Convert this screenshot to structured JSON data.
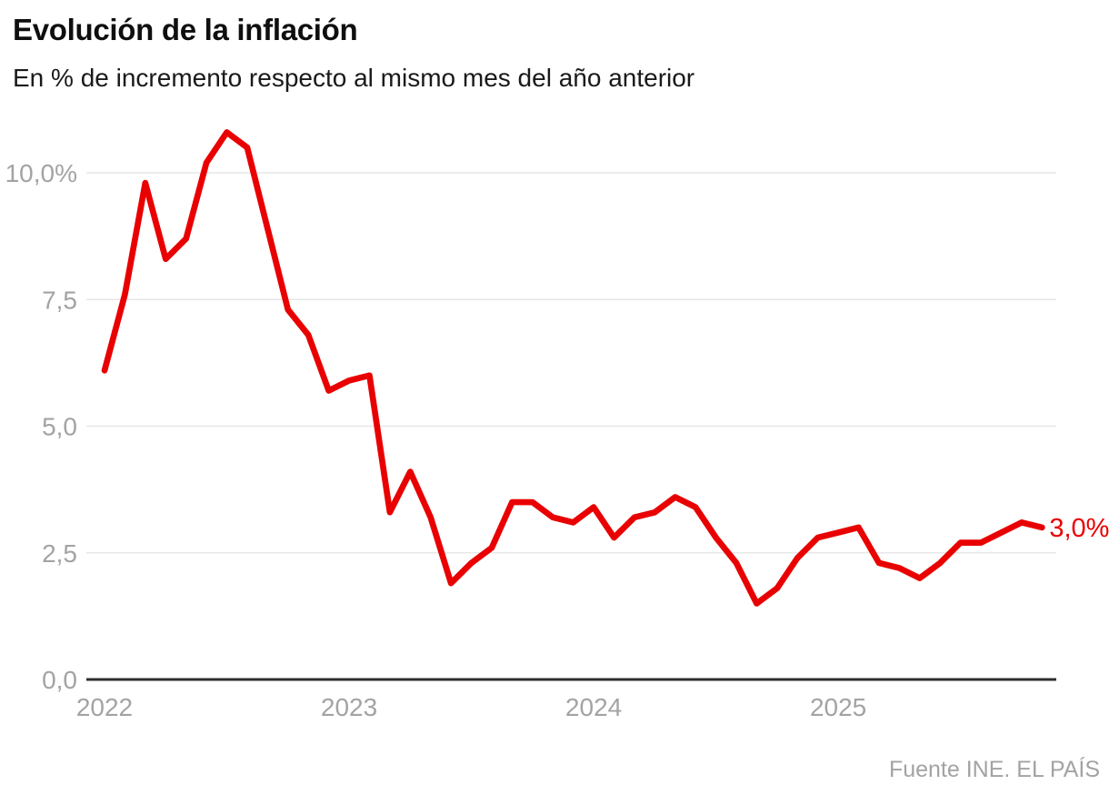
{
  "header": {
    "title": "Evolución de la inflación",
    "subtitle": "En % de incremento respecto al mismo mes del año anterior"
  },
  "footer": {
    "source": "Fuente INE. EL PAÍS"
  },
  "colors": {
    "line": "#e90000",
    "grid": "#e7e7e7",
    "axis": "#2e2e2e",
    "tick_label": "#a3a3a3",
    "end_label": "#e90000",
    "title": "#0f0f0f",
    "subtitle": "#1a1a1a",
    "background": "#ffffff"
  },
  "chart_data": {
    "type": "line",
    "title": "Evolución de la inflación",
    "subtitle": "En % de incremento respecto al mismo mes del año anterior",
    "source": "Fuente INE. EL PAÍS",
    "unit": "% YoY",
    "grid": true,
    "legend": false,
    "ylim": [
      0,
      11.2
    ],
    "y_ticks": [
      {
        "label": "10,0%",
        "value": 10
      },
      {
        "label": "7,5",
        "value": 7.5
      },
      {
        "label": "5,0",
        "value": 5
      },
      {
        "label": "2,5",
        "value": 2.5
      },
      {
        "label": "0,0",
        "value": 0
      }
    ],
    "x_ticks": [
      {
        "label": "2022",
        "month_index": 0
      },
      {
        "label": "2023",
        "month_index": 12
      },
      {
        "label": "2024",
        "month_index": 24
      },
      {
        "label": "2025",
        "month_index": 36
      }
    ],
    "end_label": "3,0%",
    "months": [
      "2022-01",
      "2022-02",
      "2022-03",
      "2022-04",
      "2022-05",
      "2022-06",
      "2022-07",
      "2022-08",
      "2022-09",
      "2022-10",
      "2022-11",
      "2022-12",
      "2023-01",
      "2023-02",
      "2023-03",
      "2023-04",
      "2023-05",
      "2023-06",
      "2023-07",
      "2023-08",
      "2023-09",
      "2023-10",
      "2023-11",
      "2023-12",
      "2024-01",
      "2024-02",
      "2024-03",
      "2024-04",
      "2024-05",
      "2024-06",
      "2024-07",
      "2024-08",
      "2024-09",
      "2024-10",
      "2024-11",
      "2024-12",
      "2025-01",
      "2025-02",
      "2025-03",
      "2025-04",
      "2025-05",
      "2025-06",
      "2025-07",
      "2025-08",
      "2025-09",
      "2025-10",
      "2025-11"
    ],
    "values": [
      6.1,
      7.6,
      9.8,
      8.3,
      8.7,
      10.2,
      10.8,
      10.5,
      8.9,
      7.3,
      6.8,
      5.7,
      5.9,
      6.0,
      3.3,
      4.1,
      3.2,
      1.9,
      2.3,
      2.6,
      3.5,
      3.5,
      3.2,
      3.1,
      3.4,
      2.8,
      3.2,
      3.3,
      3.6,
      3.4,
      2.8,
      2.3,
      1.5,
      1.8,
      2.4,
      2.8,
      2.9,
      3.0,
      2.3,
      2.2,
      2.0,
      2.3,
      2.7,
      2.7,
      2.9,
      3.1,
      3.0
    ]
  }
}
